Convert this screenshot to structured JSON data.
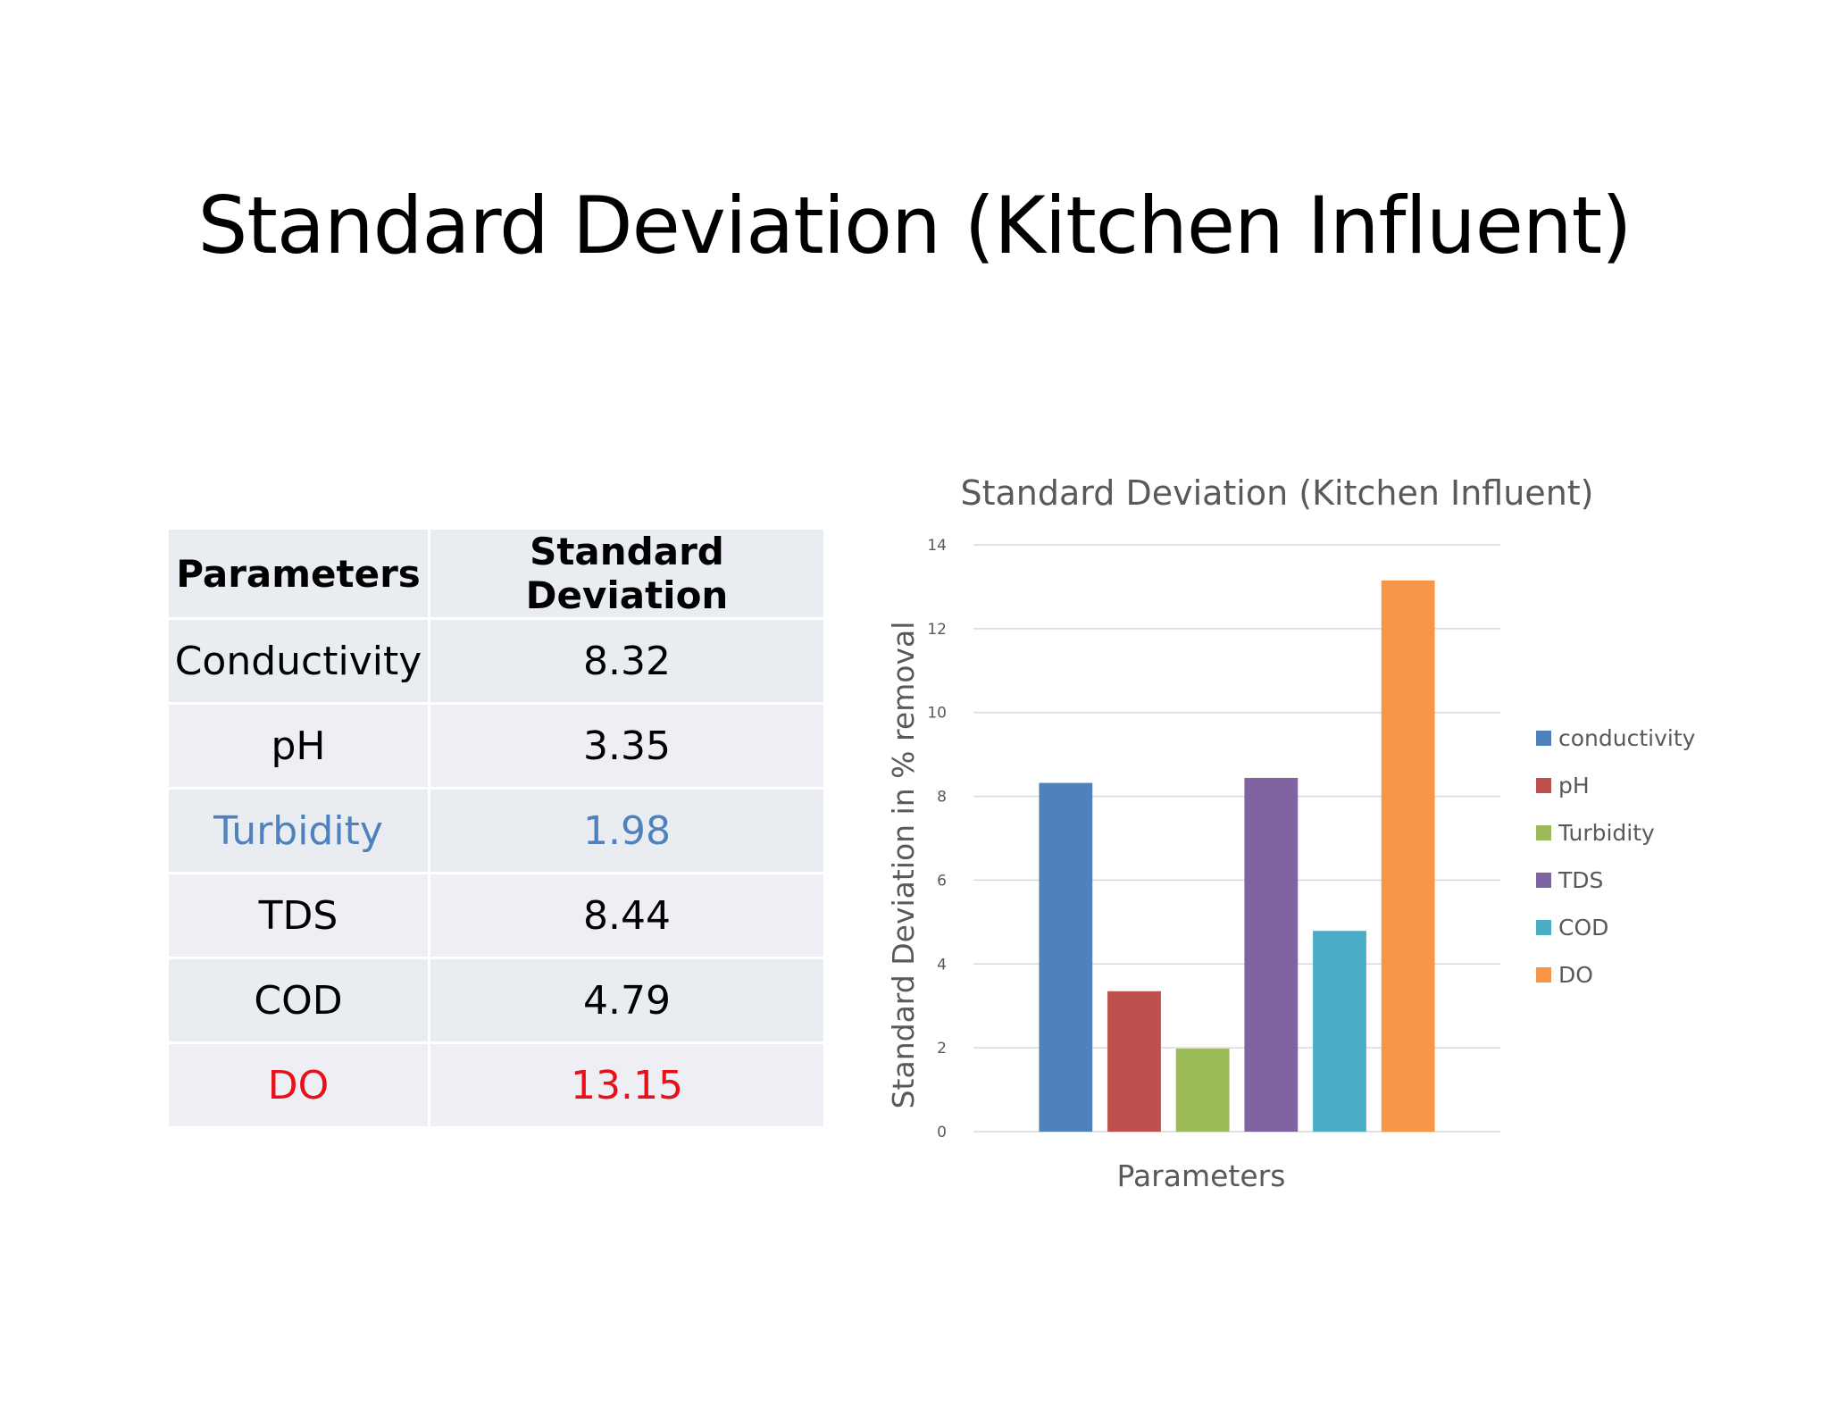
{
  "slide": {
    "title": "Standard Deviation (Kitchen Influent)"
  },
  "table": {
    "headers": [
      "Parameters",
      "Standard Deviation"
    ],
    "rows": [
      {
        "param": "Conductivity",
        "value": "8.32",
        "color": "#000000"
      },
      {
        "param": "pH",
        "value": "3.35",
        "color": "#000000"
      },
      {
        "param": "Turbidity",
        "value": "1.98",
        "color": "#4f81bd"
      },
      {
        "param": "TDS",
        "value": "8.44",
        "color": "#000000"
      },
      {
        "param": "COD",
        "value": "4.79",
        "color": "#000000"
      },
      {
        "param": "DO",
        "value": "13.15",
        "color": "#e8101a"
      }
    ]
  },
  "chart_data": {
    "type": "bar",
    "title": "Standard Deviation (Kitchen Influent)",
    "xlabel": "Parameters",
    "ylabel": "Standard Deviation in % removal",
    "ylim": [
      0,
      14
    ],
    "yticks": [
      "0",
      "2",
      "4",
      "6",
      "8",
      "10",
      "12",
      "14"
    ],
    "grid": true,
    "legend_position": "right",
    "series": [
      {
        "name": "conductivity",
        "value": 8.32,
        "color": "#4f81bd"
      },
      {
        "name": "pH",
        "value": 3.35,
        "color": "#c0504d"
      },
      {
        "name": "Turbidity",
        "value": 1.98,
        "color": "#9bbb59"
      },
      {
        "name": "TDS",
        "value": 8.44,
        "color": "#8064a2"
      },
      {
        "name": "COD",
        "value": 4.79,
        "color": "#4bacc6"
      },
      {
        "name": "DO",
        "value": 13.15,
        "color": "#f79646"
      }
    ]
  }
}
